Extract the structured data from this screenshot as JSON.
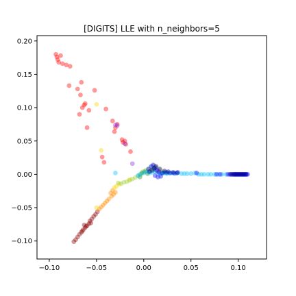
{
  "chart_data": {
    "type": "scatter",
    "title": "[DIGITS] LLE with n_neighbors=5",
    "xlabel": "",
    "ylabel": "",
    "xlim": [
      -0.113,
      0.13
    ],
    "ylim": [
      -0.127,
      0.208
    ],
    "x_ticks": [
      -0.1,
      -0.05,
      0.0,
      0.05,
      0.1
    ],
    "x_tick_labels": [
      "−0.10",
      "−0.05",
      "0.00",
      "0.05",
      "0.10"
    ],
    "y_ticks": [
      -0.1,
      -0.05,
      0.0,
      0.05,
      0.1,
      0.15,
      0.2
    ],
    "y_tick_labels": [
      "−0.10",
      "−0.05",
      "0.00",
      "0.05",
      "0.10",
      "0.15",
      "0.20"
    ],
    "grid": false,
    "legend": "none",
    "point_alpha": 0.4,
    "colors": {
      "red": "#ff0000",
      "darkred": "#8b0000",
      "orange": "#ff8c00",
      "yellow": "#ffd400",
      "yellowgreen": "#9acd32",
      "green": "#1e8f1e",
      "cyan": "#00bfff",
      "blue": "#0000ff",
      "navy": "#000080",
      "purple": "#8a2be2"
    },
    "groups": [
      {
        "color": "red",
        "points": [
          [
            -0.093,
            0.18
          ],
          [
            -0.092,
            0.176
          ],
          [
            -0.091,
            0.172
          ],
          [
            -0.09,
            0.168
          ],
          [
            -0.088,
            0.178
          ],
          [
            -0.086,
            0.166
          ],
          [
            -0.082,
            0.164
          ],
          [
            -0.078,
            0.162
          ],
          [
            -0.079,
            0.133
          ],
          [
            -0.07,
            0.128
          ],
          [
            -0.066,
            0.138
          ],
          [
            -0.067,
            0.119
          ],
          [
            -0.063,
            0.104
          ],
          [
            -0.062,
            0.106
          ],
          [
            -0.065,
            0.1
          ],
          [
            -0.068,
            0.09
          ],
          [
            -0.052,
            0.126
          ],
          [
            -0.058,
            0.096
          ],
          [
            -0.06,
            0.07
          ],
          [
            -0.04,
            0.098
          ],
          [
            -0.033,
            0.08
          ],
          [
            -0.028,
            0.075
          ],
          [
            -0.03,
            0.07
          ],
          [
            -0.031,
            0.064
          ],
          [
            -0.023,
            0.052
          ],
          [
            -0.022,
            0.048
          ],
          [
            -0.02,
            0.05
          ],
          [
            -0.019,
            0.045
          ],
          [
            -0.014,
            0.034
          ],
          [
            -0.044,
            0.026
          ],
          [
            -0.042,
            0.018
          ]
        ]
      },
      {
        "color": "darkred",
        "points": [
          [
            -0.074,
            -0.101
          ],
          [
            -0.072,
            -0.098
          ],
          [
            -0.07,
            -0.094
          ],
          [
            -0.068,
            -0.09
          ],
          [
            -0.066,
            -0.087
          ],
          [
            -0.064,
            -0.083
          ],
          [
            -0.062,
            -0.08
          ],
          [
            -0.06,
            -0.077
          ],
          [
            -0.058,
            -0.074
          ],
          [
            -0.057,
            -0.07
          ],
          [
            -0.055,
            -0.067
          ],
          [
            -0.053,
            -0.063
          ],
          [
            -0.051,
            -0.06
          ],
          [
            -0.049,
            -0.056
          ],
          [
            -0.061,
            -0.078
          ],
          [
            -0.063,
            -0.076
          ],
          [
            -0.056,
            -0.073
          ],
          [
            -0.065,
            -0.085
          ]
        ]
      },
      {
        "color": "orange",
        "points": [
          [
            -0.047,
            -0.052
          ],
          [
            -0.045,
            -0.049
          ],
          [
            -0.043,
            -0.046
          ],
          [
            -0.041,
            -0.043
          ],
          [
            -0.039,
            -0.04
          ],
          [
            -0.037,
            -0.037
          ],
          [
            -0.034,
            -0.033
          ],
          [
            -0.032,
            -0.03
          ],
          [
            -0.03,
            -0.027
          ],
          [
            -0.033,
            -0.024
          ],
          [
            -0.035,
            -0.028
          ]
        ]
      },
      {
        "color": "yellow",
        "points": [
          [
            -0.045,
            0.036
          ],
          [
            -0.05,
            -0.05
          ],
          [
            -0.031,
            -0.02
          ],
          [
            -0.029,
            -0.018
          ],
          [
            -0.026,
            -0.015
          ],
          [
            -0.015,
            -0.008
          ],
          [
            -0.05,
            0.105
          ]
        ]
      },
      {
        "color": "yellowgreen",
        "points": [
          [
            -0.024,
            -0.014
          ],
          [
            -0.021,
            -0.012
          ],
          [
            -0.018,
            -0.011
          ],
          [
            -0.015,
            -0.009
          ],
          [
            -0.012,
            -0.007
          ],
          [
            -0.009,
            -0.005
          ],
          [
            -0.006,
            -0.002
          ],
          [
            -0.003,
            0.0
          ],
          [
            -0.001,
            0.004
          ],
          [
            0.002,
            0.006
          ],
          [
            0.005,
            0.008
          ],
          [
            0.008,
            0.011
          ],
          [
            0.011,
            0.013
          ],
          [
            0.014,
            0.01
          ],
          [
            0.017,
            0.006
          ],
          [
            0.02,
            0.004
          ],
          [
            -0.027,
            -0.013
          ]
        ]
      },
      {
        "color": "green",
        "points": [
          [
            -0.004,
            -0.004
          ],
          [
            -0.002,
            0.002
          ],
          [
            0.001,
            0.004
          ],
          [
            0.004,
            0.001
          ],
          [
            0.007,
            0.005
          ],
          [
            0.01,
            0.008
          ],
          [
            0.013,
            0.006
          ],
          [
            0.016,
            0.004
          ],
          [
            0.019,
            0.002
          ],
          [
            0.022,
            0.003
          ],
          [
            0.025,
            0.002
          ]
        ]
      },
      {
        "color": "cyan",
        "points": [
          [
            -0.006,
            -0.002
          ],
          [
            -0.004,
            0.0
          ],
          [
            0.0,
            0.002
          ],
          [
            0.003,
            0.004
          ],
          [
            0.006,
            0.002
          ],
          [
            0.009,
            0.003
          ],
          [
            0.012,
            0.004
          ],
          [
            0.015,
            0.002
          ],
          [
            0.018,
            0.001
          ],
          [
            0.021,
            0.002
          ],
          [
            0.024,
            0.001
          ],
          [
            0.027,
            0.002
          ],
          [
            0.03,
            0.002
          ],
          [
            0.033,
            0.001
          ],
          [
            0.036,
            0.002
          ],
          [
            0.04,
            0.001
          ],
          [
            0.043,
            0.001
          ],
          [
            0.046,
            0.001
          ],
          [
            0.05,
            0.001
          ],
          [
            0.054,
            0.002
          ],
          [
            0.058,
            0.0
          ],
          [
            0.061,
            0.0
          ],
          [
            0.064,
            0.0
          ],
          [
            0.068,
            0.0
          ],
          [
            0.071,
            0.0
          ],
          [
            0.075,
            0.0
          ],
          [
            0.079,
            0.0
          ],
          [
            0.083,
            0.0
          ],
          [
            0.087,
            0.0
          ],
          [
            -0.03,
            0.002
          ]
        ]
      },
      {
        "color": "blue",
        "points": [
          [
            0.005,
            0.008
          ],
          [
            0.008,
            0.012
          ],
          [
            0.01,
            0.014
          ],
          [
            0.012,
            0.01
          ],
          [
            0.014,
            0.006
          ],
          [
            0.016,
            0.003
          ],
          [
            0.02,
            0.002
          ],
          [
            0.024,
            0.003
          ],
          [
            0.028,
            0.002
          ],
          [
            0.032,
            0.002
          ],
          [
            0.036,
            0.003
          ],
          [
            0.056,
            0.002
          ],
          [
            0.077,
            0.0
          ],
          [
            0.081,
            0.0
          ],
          [
            0.089,
            0.0
          ],
          [
            0.091,
            0.0
          ],
          [
            0.093,
            0.0
          ],
          [
            0.095,
            0.0
          ],
          [
            0.096,
            0.0
          ],
          [
            0.097,
            0.0
          ],
          [
            0.098,
            0.0
          ],
          [
            0.099,
            0.0
          ],
          [
            0.1,
            0.0
          ],
          [
            0.101,
            0.0
          ],
          [
            0.102,
            0.0
          ],
          [
            0.103,
            0.0
          ],
          [
            0.104,
            0.0
          ],
          [
            0.105,
            0.0
          ],
          [
            0.106,
            0.0
          ],
          [
            0.107,
            0.0
          ],
          [
            0.108,
            0.0
          ],
          [
            0.109,
            0.0
          ],
          [
            0.11,
            0.0
          ],
          [
            0.015,
            -0.004
          ],
          [
            0.018,
            -0.003
          ],
          [
            0.012,
            -0.002
          ]
        ]
      },
      {
        "color": "navy",
        "points": [
          [
            0.006,
            0.004
          ],
          [
            0.009,
            0.006
          ],
          [
            0.011,
            0.009
          ],
          [
            0.013,
            0.012
          ],
          [
            0.017,
            0.008
          ],
          [
            0.022,
            0.005
          ],
          [
            0.026,
            0.004
          ],
          [
            0.031,
            0.003
          ],
          [
            0.035,
            0.002
          ],
          [
            0.092,
            0.0
          ],
          [
            0.094,
            0.0
          ],
          [
            0.096,
            0.0
          ],
          [
            0.098,
            0.0
          ],
          [
            0.1,
            0.0
          ],
          [
            0.102,
            0.0
          ],
          [
            0.104,
            0.0
          ],
          [
            0.106,
            0.0
          ],
          [
            0.108,
            0.0
          ]
        ]
      },
      {
        "color": "purple",
        "points": [
          [
            -0.03,
            0.074
          ],
          [
            -0.028,
            0.073
          ],
          [
            -0.02,
            0.046
          ],
          [
            -0.012,
            0.016
          ],
          [
            0.015,
            0.005
          ]
        ]
      }
    ]
  }
}
